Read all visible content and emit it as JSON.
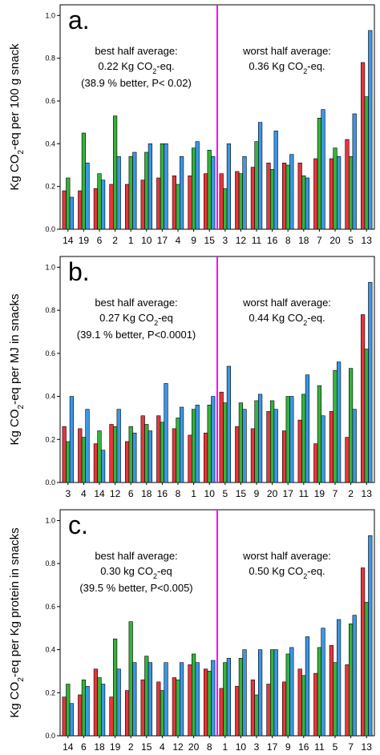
{
  "colors": {
    "red": "#e8343c",
    "green": "#36b23a",
    "blue": "#3a97e6",
    "divider": "#ff00ff"
  },
  "chart_data": [
    {
      "type": "bar",
      "panel": "a.",
      "ylabel": "Kg CO2-eq per 100 g snack",
      "ylim": [
        0,
        1.05
      ],
      "yticks": [
        "0.0",
        "0.2",
        "0.4",
        "0.6",
        "0.8",
        "1.0"
      ],
      "categories": [
        "14",
        "19",
        "6",
        "2",
        "1",
        "10",
        "17",
        "4",
        "9",
        "15",
        "3",
        "12",
        "11",
        "16",
        "8",
        "18",
        "7",
        "20",
        "5",
        "13"
      ],
      "series": [
        {
          "color": "red",
          "values": [
            0.18,
            0.18,
            0.19,
            0.21,
            0.21,
            0.23,
            0.24,
            0.25,
            0.25,
            0.26,
            0.26,
            0.27,
            0.29,
            0.31,
            0.31,
            0.31,
            0.33,
            0.33,
            0.42,
            0.78
          ]
        },
        {
          "color": "green",
          "values": [
            0.24,
            0.45,
            0.26,
            0.53,
            0.34,
            0.36,
            0.4,
            0.21,
            0.38,
            0.37,
            0.19,
            0.26,
            0.41,
            0.28,
            0.3,
            0.25,
            0.52,
            0.38,
            0.34,
            0.62
          ]
        },
        {
          "color": "blue",
          "values": [
            0.15,
            0.31,
            0.23,
            0.34,
            0.36,
            0.4,
            0.4,
            0.34,
            0.41,
            0.34,
            0.4,
            0.34,
            0.5,
            0.46,
            0.35,
            0.24,
            0.56,
            0.34,
            0.54,
            0.93
          ]
        }
      ],
      "divider_after_index": 9,
      "annotations": {
        "left_line1": "best half average:",
        "left_line2_pre": "0.22 Kg CO",
        "left_line2_sub": "2",
        "left_line2_post": "-eq.",
        "left_line3": "(38.9 % better, P< 0.02)",
        "right_line1": "worst half average:",
        "right_line2_pre": "0.36 Kg CO",
        "right_line2_sub": "2",
        "right_line2_post": "-eq."
      }
    },
    {
      "type": "bar",
      "panel": "b.",
      "ylabel": "Kg CO2-eq per MJ in snacks",
      "ylim": [
        0,
        1.05
      ],
      "yticks": [
        "0.0",
        "0.2",
        "0.4",
        "0.6",
        "0.8",
        "1.0"
      ],
      "categories": [
        "3",
        "4",
        "14",
        "12",
        "6",
        "18",
        "16",
        "8",
        "1",
        "10",
        "5",
        "15",
        "9",
        "20",
        "17",
        "11",
        "19",
        "7",
        "2",
        "13"
      ],
      "series": [
        {
          "color": "red",
          "values": [
            0.26,
            0.25,
            0.18,
            0.27,
            0.19,
            0.31,
            0.31,
            0.25,
            0.22,
            0.23,
            0.42,
            0.26,
            0.25,
            0.33,
            0.24,
            0.29,
            0.18,
            0.33,
            0.21,
            0.78
          ]
        },
        {
          "color": "green",
          "values": [
            0.19,
            0.21,
            0.24,
            0.26,
            0.26,
            0.27,
            0.28,
            0.3,
            0.34,
            0.36,
            0.37,
            0.37,
            0.38,
            0.38,
            0.4,
            0.41,
            0.45,
            0.52,
            0.53,
            0.62
          ]
        },
        {
          "color": "blue",
          "values": [
            0.4,
            0.34,
            0.15,
            0.34,
            0.23,
            0.24,
            0.46,
            0.35,
            0.36,
            0.4,
            0.54,
            0.34,
            0.41,
            0.34,
            0.4,
            0.5,
            0.31,
            0.56,
            0.34,
            0.93
          ]
        }
      ],
      "divider_after_index": 9,
      "annotations": {
        "left_line1": "best half average:",
        "left_line2_pre": "0.27 Kg CO",
        "left_line2_sub": "2",
        "left_line2_post": "-eq",
        "left_line3": "(39.1 % better, P<0.0001)",
        "right_line1": "worst half average:",
        "right_line2_pre": "0.44 Kg CO",
        "right_line2_sub": "2",
        "right_line2_post": "-eq."
      }
    },
    {
      "type": "bar",
      "panel": "c.",
      "ylabel": "Kg CO2-eq per Kg protein in snacks",
      "ylim": [
        0,
        1.05
      ],
      "yticks": [
        "0.0",
        "0.2",
        "0.4",
        "0.6",
        "0.8",
        "1.0"
      ],
      "categories": [
        "14",
        "6",
        "18",
        "19",
        "2",
        "15",
        "4",
        "12",
        "20",
        "8",
        "1",
        "10",
        "3",
        "17",
        "9",
        "16",
        "11",
        "5",
        "7",
        "13"
      ],
      "series": [
        {
          "color": "red",
          "values": [
            0.18,
            0.19,
            0.31,
            0.18,
            0.21,
            0.26,
            0.25,
            0.27,
            0.33,
            0.31,
            0.22,
            0.23,
            0.26,
            0.24,
            0.25,
            0.31,
            0.29,
            0.42,
            0.33,
            0.78
          ]
        },
        {
          "color": "green",
          "values": [
            0.24,
            0.26,
            0.27,
            0.45,
            0.53,
            0.37,
            0.21,
            0.26,
            0.38,
            0.3,
            0.34,
            0.36,
            0.19,
            0.4,
            0.38,
            0.28,
            0.41,
            0.34,
            0.52,
            0.62
          ]
        },
        {
          "color": "blue",
          "values": [
            0.15,
            0.23,
            0.24,
            0.31,
            0.34,
            0.34,
            0.34,
            0.34,
            0.34,
            0.35,
            0.36,
            0.4,
            0.4,
            0.4,
            0.41,
            0.46,
            0.5,
            0.54,
            0.56,
            0.93
          ]
        }
      ],
      "divider_after_index": 9,
      "annotations": {
        "left_line1": "best half average:",
        "left_line2_pre": "0.30 kg CO",
        "left_line2_sub": "2",
        "left_line2_post": "-eq",
        "left_line3": "(39.5 % better, P<0.005)",
        "right_line1": "worst half average:",
        "right_line2_pre": "0.50 Kg CO",
        "right_line2_sub": "2",
        "right_line2_post": "-eq."
      }
    }
  ]
}
